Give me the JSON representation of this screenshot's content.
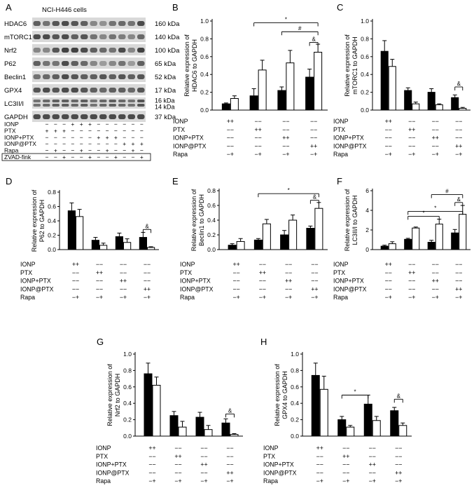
{
  "blot": {
    "letter": "A",
    "title": "NCI-H446 cells",
    "bands": [
      {
        "name": "HDAC6",
        "kda": "160 kDa"
      },
      {
        "name": "mTORC1",
        "kda": "140 kDa"
      },
      {
        "name": "Nrf2",
        "kda": "100 kDa"
      },
      {
        "name": "P62",
        "kda": "65 kDa"
      },
      {
        "name": "Beclin1",
        "kda": "52 kDa"
      },
      {
        "name": "GPX4",
        "kda": "17 kDa"
      },
      {
        "name": "LC3II/I",
        "kda": "16 kDa",
        "kda2": "14 kDa"
      },
      {
        "name": "GAPDH",
        "kda": "37 kDa"
      }
    ],
    "conditions": [
      {
        "label": "IONP",
        "signs": [
          "−",
          "−",
          "−",
          "+",
          "+",
          "+",
          "−",
          "−",
          "−",
          "−",
          "−",
          "−"
        ]
      },
      {
        "label": "PTX",
        "signs": [
          "+",
          "+",
          "+",
          "−",
          "−",
          "−",
          "−",
          "−",
          "−",
          "−",
          "−",
          "−"
        ]
      },
      {
        "label": "IONP+PTX",
        "signs": [
          "−",
          "−",
          "−",
          "−",
          "−",
          "−",
          "+",
          "+",
          "+",
          "−",
          "−",
          "−"
        ]
      },
      {
        "label": "IONP@PTX",
        "signs": [
          "−",
          "−",
          "−",
          "−",
          "−",
          "−",
          "−",
          "−",
          "−",
          "+",
          "+",
          "+"
        ]
      },
      {
        "label": "Rapa",
        "signs": [
          "−",
          "+",
          "−",
          "−",
          "+",
          "−",
          "−",
          "+",
          "−",
          "−",
          "+",
          "−"
        ]
      },
      {
        "label": "ZVAD-fink",
        "signs": [
          "−",
          "−",
          "+",
          "−",
          "−",
          "+",
          "−",
          "−",
          "+",
          "−",
          "−",
          "+"
        ]
      }
    ]
  },
  "group_rows": [
    {
      "label": "IONP",
      "signs": [
        "++",
        "−−",
        "−−",
        "−−"
      ]
    },
    {
      "label": "PTX",
      "signs": [
        "−−",
        "++",
        "−−",
        "−−"
      ]
    },
    {
      "label": "IONP+PTX",
      "signs": [
        "−−",
        "−−",
        "++",
        "−−"
      ]
    },
    {
      "label": "IONP@PTX",
      "signs": [
        "−−",
        "−−",
        "−−",
        "++"
      ]
    },
    {
      "label": "Rapa",
      "signs": [
        "−+",
        "−+",
        "−+",
        "−+"
      ]
    }
  ],
  "chart_data": [
    {
      "letter": "B",
      "type": "bar",
      "ylabel": "Relative expression of HDAC6 to GAPDH",
      "ylabel_lines": [
        "Relative expression of",
        "HDAC6 to GAPDH"
      ],
      "ylim": [
        0,
        1.0
      ],
      "yticks": [
        "0.0",
        "0.2",
        "0.4",
        "0.6",
        "0.8",
        "1.0"
      ],
      "series": [
        {
          "values": [
            0.07,
            0.16,
            0.22,
            0.37
          ],
          "errors": [
            0.01,
            0.08,
            0.04,
            0.09
          ],
          "color": "#000000"
        },
        {
          "values": [
            0.13,
            0.45,
            0.53,
            0.65
          ],
          "errors": [
            0.03,
            0.11,
            0.14,
            0.09
          ],
          "color": "#ffffff"
        }
      ],
      "annotations": [
        {
          "text": "*",
          "from": [
            1,
            0
          ],
          "to": [
            3,
            1
          ],
          "y": 0.98
        },
        {
          "text": "#",
          "from": [
            2,
            0
          ],
          "to": [
            3,
            1
          ],
          "y": 0.88
        },
        {
          "text": "&",
          "from": [
            3,
            0
          ],
          "to": [
            3,
            1
          ],
          "y": 0.76
        }
      ]
    },
    {
      "letter": "C",
      "type": "bar",
      "ylabel": "Relative expression of mTORC1 to GAPDH",
      "ylabel_lines": [
        "Relative expression of",
        "mTORC1 to GAPDH"
      ],
      "ylim": [
        0,
        1.0
      ],
      "yticks": [
        "0.0",
        "0.2",
        "0.4",
        "0.6",
        "0.8",
        "1.0"
      ],
      "series": [
        {
          "values": [
            0.66,
            0.22,
            0.2,
            0.14
          ],
          "errors": [
            0.12,
            0.03,
            0.04,
            0.03
          ],
          "color": "#000000"
        },
        {
          "values": [
            0.49,
            0.07,
            0.06,
            0.02
          ],
          "errors": [
            0.08,
            0.02,
            0.01,
            0.01
          ],
          "color": "#ffffff"
        }
      ],
      "annotations": [
        {
          "text": "&",
          "from": [
            3,
            0
          ],
          "to": [
            3,
            1
          ],
          "y": 0.26
        }
      ]
    },
    {
      "letter": "D",
      "type": "bar",
      "ylabel": "Relative expression of P62 to GAPDH",
      "ylabel_lines": [
        "Relative expression of",
        "P62 to GAPDH"
      ],
      "ylim": [
        0,
        0.8
      ],
      "yticks": [
        "0.0",
        "0.2",
        "0.4",
        "0.6",
        "0.8"
      ],
      "series": [
        {
          "values": [
            0.54,
            0.13,
            0.18,
            0.17
          ],
          "errors": [
            0.11,
            0.04,
            0.05,
            0.07
          ],
          "color": "#000000"
        },
        {
          "values": [
            0.46,
            0.06,
            0.1,
            0.03
          ],
          "errors": [
            0.1,
            0.03,
            0.05,
            0.01
          ],
          "color": "#ffffff"
        }
      ],
      "annotations": [
        {
          "text": "&",
          "from": [
            3,
            0
          ],
          "to": [
            3,
            1
          ],
          "y": 0.28
        }
      ]
    },
    {
      "letter": "E",
      "type": "bar",
      "ylabel": "Relative expression of Beclin1 to GAPDH",
      "ylabel_lines": [
        "Relative expression of",
        "Beclin1 to GAPDH"
      ],
      "ylim": [
        0,
        0.8
      ],
      "yticks": [
        "0.0",
        "0.2",
        "0.4",
        "0.6",
        "0.8"
      ],
      "series": [
        {
          "values": [
            0.06,
            0.13,
            0.2,
            0.29
          ],
          "errors": [
            0.02,
            0.02,
            0.06,
            0.03
          ],
          "color": "#000000"
        },
        {
          "values": [
            0.11,
            0.35,
            0.4,
            0.56
          ],
          "errors": [
            0.04,
            0.06,
            0.07,
            0.08
          ],
          "color": "#ffffff"
        }
      ],
      "annotations": [
        {
          "text": "*",
          "from": [
            1,
            0
          ],
          "to": [
            3,
            1
          ],
          "y": 0.76
        },
        {
          "text": "&",
          "from": [
            3,
            0
          ],
          "to": [
            3,
            1
          ],
          "y": 0.67
        }
      ]
    },
    {
      "letter": "F",
      "type": "bar",
      "ylabel": "Relative expression of LC3II/I to GAPDH",
      "ylabel_lines": [
        "Relative expression of",
        "LC3II/I to GAPDH"
      ],
      "ylim": [
        0,
        6
      ],
      "yticks": [
        "0",
        "2",
        "4",
        "6"
      ],
      "series": [
        {
          "values": [
            0.35,
            1.05,
            0.75,
            1.7
          ],
          "errors": [
            0.1,
            0.1,
            0.2,
            0.35
          ],
          "color": "#000000"
        },
        {
          "values": [
            0.6,
            2.2,
            2.6,
            3.6
          ],
          "errors": [
            0.2,
            0.1,
            0.5,
            0.9
          ],
          "color": "#ffffff"
        }
      ],
      "annotations": [
        {
          "text": "#",
          "from": [
            2,
            0
          ],
          "to": [
            3,
            1
          ],
          "y": 5.6
        },
        {
          "text": "&",
          "from": [
            3,
            0
          ],
          "to": [
            3,
            1
          ],
          "y": 4.8
        },
        {
          "text": "*",
          "from": [
            1,
            0
          ],
          "to": [
            3,
            1
          ],
          "y": 3.9
        },
        {
          "text": "*",
          "from": [
            1,
            0
          ],
          "to": [
            2,
            1
          ],
          "y": 3.4
        }
      ]
    },
    {
      "letter": "G",
      "type": "bar",
      "ylabel": "Relative expression of Nrf2 to GAPDH",
      "ylabel_lines": [
        "Relative expression of",
        "Nrf2 to GAPDH"
      ],
      "ylim": [
        0,
        1.0
      ],
      "yticks": [
        "0.0",
        "0.2",
        "0.4",
        "0.6",
        "0.8",
        "1.0"
      ],
      "series": [
        {
          "values": [
            0.76,
            0.25,
            0.23,
            0.16
          ],
          "errors": [
            0.13,
            0.05,
            0.06,
            0.05
          ],
          "color": "#000000"
        },
        {
          "values": [
            0.62,
            0.11,
            0.08,
            0.02
          ],
          "errors": [
            0.1,
            0.07,
            0.05,
            0.01
          ],
          "color": "#ffffff"
        }
      ],
      "annotations": [
        {
          "text": "&",
          "from": [
            3,
            0
          ],
          "to": [
            3,
            1
          ],
          "y": 0.27
        }
      ]
    },
    {
      "letter": "H",
      "type": "bar",
      "ylabel": "Relative expression of GPX4 to GAPDH",
      "ylabel_lines": [
        "Relative expression of",
        "GPX4 to GAPDH"
      ],
      "ylim": [
        0,
        1.0
      ],
      "yticks": [
        "0.0",
        "0.2",
        "0.4",
        "0.6",
        "0.8",
        "1.0"
      ],
      "series": [
        {
          "values": [
            0.74,
            0.2,
            0.39,
            0.31
          ],
          "errors": [
            0.15,
            0.04,
            0.11,
            0.04
          ],
          "color": "#000000"
        },
        {
          "values": [
            0.57,
            0.11,
            0.19,
            0.13
          ],
          "errors": [
            0.16,
            0.02,
            0.05,
            0.03
          ],
          "color": "#ffffff"
        }
      ],
      "annotations": [
        {
          "text": "*",
          "from": [
            1,
            0
          ],
          "to": [
            2,
            0
          ],
          "y": 0.5
        },
        {
          "text": "&",
          "from": [
            3,
            0
          ],
          "to": [
            3,
            1
          ],
          "y": 0.45
        }
      ]
    }
  ]
}
